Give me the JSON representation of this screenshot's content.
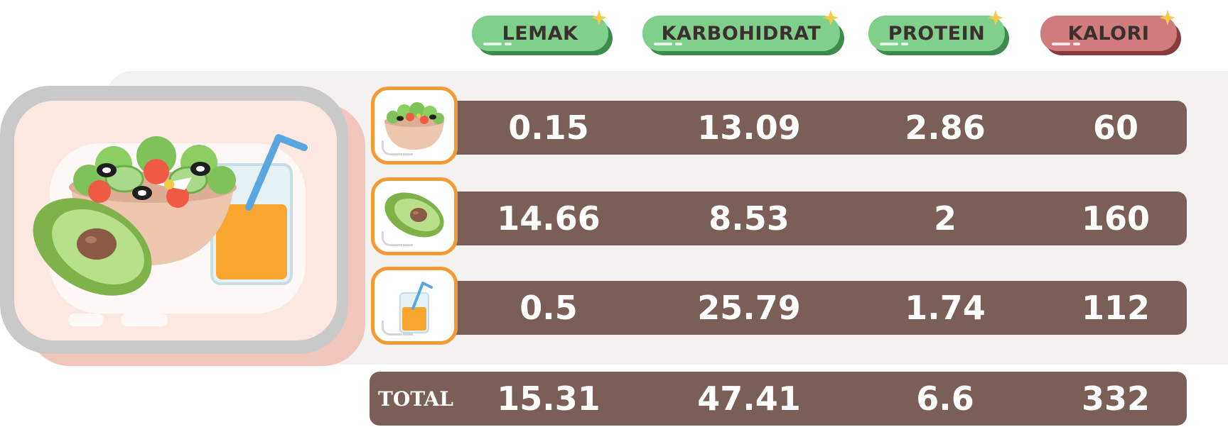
{
  "headers": [
    {
      "key": "lemak",
      "label": "LEMAK",
      "color": "#7fd08a"
    },
    {
      "key": "karbohidrat",
      "label": "KARBOHIDRAT",
      "color": "#7fd08a"
    },
    {
      "key": "protein",
      "label": "PROTEIN",
      "color": "#7fd08a"
    },
    {
      "key": "kalori",
      "label": "KALORI",
      "color": "#d17c7c"
    }
  ],
  "rows": [
    {
      "icon": "salad-bowl-icon",
      "lemak": "0.15",
      "karbohidrat": "13.09",
      "protein": "2.86",
      "kalori": "60"
    },
    {
      "icon": "avocado-icon",
      "lemak": "14.66",
      "karbohidrat": "8.53",
      "protein": "2",
      "kalori": "160"
    },
    {
      "icon": "orange-juice-icon",
      "lemak": "0.5",
      "karbohidrat": "25.79",
      "protein": "1.74",
      "kalori": "112"
    }
  ],
  "total": {
    "label": "TOTAL",
    "lemak": "15.31",
    "karbohidrat": "47.41",
    "protein": "6.6",
    "kalori": "332"
  },
  "colors": {
    "bar": "#7a5f58",
    "thumb_border": "#f49a35",
    "panel": "#f4f2f1"
  }
}
